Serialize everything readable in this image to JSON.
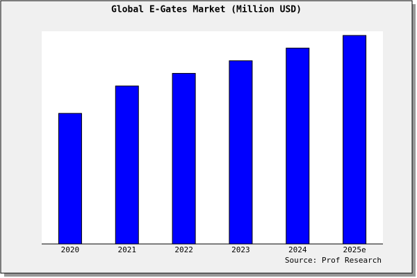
{
  "chart_data": {
    "type": "bar",
    "title": "Global E-Gates Market (Million USD)",
    "categories": [
      "2020",
      "2021",
      "2022",
      "2023",
      "2024",
      "2025e"
    ],
    "values": [
      62,
      75,
      81,
      87,
      93,
      99
    ],
    "color": "#0000ff",
    "ylim": [
      0,
      100
    ],
    "source": "Source: Prof Research"
  }
}
